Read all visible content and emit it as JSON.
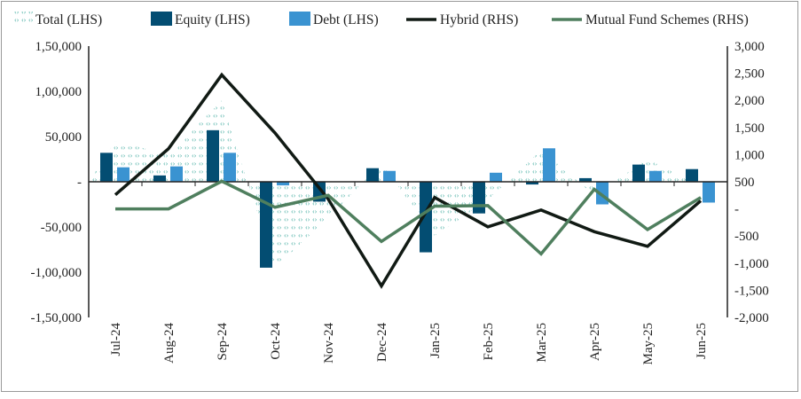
{
  "chart_data": {
    "type": "bar",
    "categories": [
      "Jul-24",
      "Aug-24",
      "Sep-24",
      "Oct-24",
      "Nov-24",
      "Dec-24",
      "Jan-25",
      "Feb-25",
      "Mar-25",
      "Apr-25",
      "May-25",
      "Jun-25"
    ],
    "y_left": {
      "range": [
        -150000,
        150000
      ],
      "ticks": [
        150000,
        100000,
        50000,
        0,
        -50000,
        -100000,
        -150000
      ],
      "tick_labels": [
        "1,50,000",
        "1,00,000",
        "50,000",
        "-",
        "-50,000",
        "-1,00,000",
        "-1,50,000"
      ]
    },
    "y_right": {
      "range": [
        -2000,
        3000
      ],
      "ticks": [
        3000,
        2500,
        2000,
        1500,
        1000,
        500,
        0,
        -500,
        -1000,
        -1500,
        -2000
      ],
      "tick_labels": [
        "3,000",
        "2,500",
        "2,000",
        "1,500",
        "1,000",
        "500",
        "-",
        "-500",
        "-1,000",
        "-1,500",
        "-2,000"
      ]
    },
    "legend_position": "top",
    "grid": false,
    "series": [
      {
        "name": "Total (LHS)",
        "type": "area",
        "axis": "left",
        "color": "#3aa89c",
        "values": [
          45000,
          30000,
          90000,
          -95000,
          -40000,
          20000,
          -60000,
          -20000,
          35000,
          -15000,
          25000,
          -5000
        ]
      },
      {
        "name": "Equity (LHS)",
        "type": "bar",
        "axis": "left",
        "color": "#034d72",
        "values": [
          32000,
          7000,
          57000,
          -95000,
          -22000,
          15000,
          -78000,
          -35000,
          -3000,
          4000,
          19000,
          14000
        ]
      },
      {
        "name": "Debt (LHS)",
        "type": "bar",
        "axis": "left",
        "color": "#3a93d1",
        "values": [
          16000,
          17000,
          32000,
          -4000,
          0,
          12000,
          0,
          10000,
          37000,
          -25000,
          12000,
          -23000
        ]
      },
      {
        "name": "Hybrid (RHS)",
        "type": "line",
        "axis": "right",
        "color": "#111a14",
        "values": [
          260,
          1110,
          2470,
          1400,
          180,
          -1420,
          210,
          -330,
          -20,
          -420,
          -690,
          150
        ]
      },
      {
        "name": "Mutual Fund Schemes (RHS)",
        "type": "line",
        "axis": "right",
        "color": "#4f7f5e",
        "values": [
          0,
          0,
          510,
          30,
          250,
          -600,
          50,
          60,
          -830,
          360,
          -380,
          210
        ]
      }
    ]
  }
}
